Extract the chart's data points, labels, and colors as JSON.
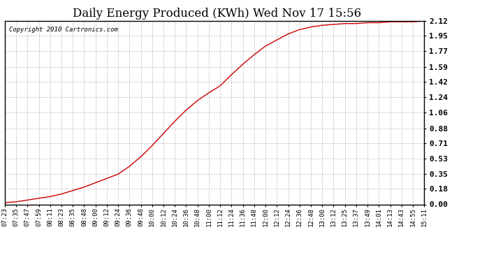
{
  "title": "Daily Energy Produced (KWh) Wed Nov 17 15:56",
  "copyright_text": "Copyright 2010 Cartronics.com",
  "line_color": "#cc0000",
  "background_color": "#ffffff",
  "plot_bg_color": "#ffffff",
  "grid_color": "#bbbbbb",
  "yticks": [
    0.0,
    0.18,
    0.35,
    0.53,
    0.71,
    0.88,
    1.06,
    1.24,
    1.42,
    1.59,
    1.77,
    1.95,
    2.12
  ],
  "ylim": [
    0.0,
    2.12
  ],
  "xtick_labels": [
    "07:23",
    "07:35",
    "07:47",
    "07:59",
    "08:11",
    "08:23",
    "08:35",
    "08:48",
    "09:00",
    "09:12",
    "09:24",
    "09:36",
    "09:48",
    "10:00",
    "10:12",
    "10:24",
    "10:36",
    "10:48",
    "11:00",
    "11:12",
    "11:24",
    "11:36",
    "11:48",
    "12:00",
    "12:12",
    "12:24",
    "12:36",
    "12:48",
    "13:00",
    "13:12",
    "13:25",
    "13:37",
    "13:49",
    "14:01",
    "14:13",
    "14:43",
    "14:55",
    "15:11"
  ],
  "x_values": [
    0,
    1,
    2,
    3,
    4,
    5,
    6,
    7,
    8,
    9,
    10,
    11,
    12,
    13,
    14,
    15,
    16,
    17,
    18,
    19,
    20,
    21,
    22,
    23,
    24,
    25,
    26,
    27,
    28,
    29,
    30,
    31,
    32,
    33,
    34,
    35,
    36,
    37
  ],
  "y_values": [
    0.02,
    0.03,
    0.05,
    0.07,
    0.09,
    0.12,
    0.16,
    0.2,
    0.25,
    0.3,
    0.35,
    0.44,
    0.55,
    0.68,
    0.82,
    0.96,
    1.09,
    1.2,
    1.29,
    1.37,
    1.5,
    1.62,
    1.73,
    1.83,
    1.9,
    1.97,
    2.02,
    2.05,
    2.07,
    2.08,
    2.09,
    2.09,
    2.1,
    2.1,
    2.11,
    2.11,
    2.11,
    2.12
  ],
  "title_fontsize": 12,
  "tick_fontsize": 6.5,
  "copyright_fontsize": 6.5,
  "ytick_fontsize": 8,
  "fig_width": 6.9,
  "fig_height": 3.75,
  "dpi": 100
}
